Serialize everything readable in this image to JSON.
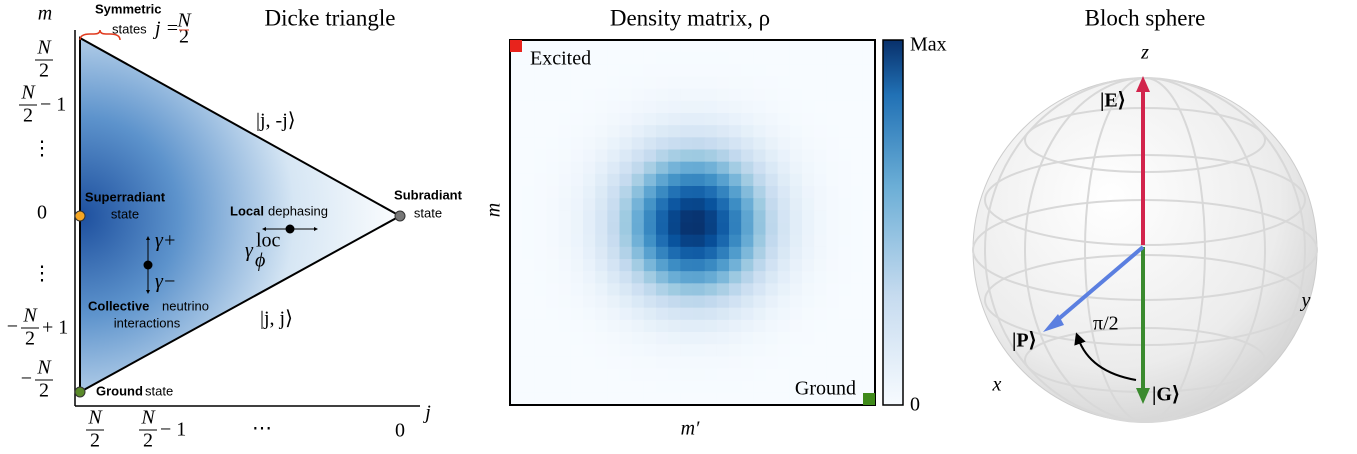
{
  "dicke": {
    "title": "Dicke triangle",
    "y_axis": "m",
    "x_axis": "j",
    "y_ticks": [
      {
        "num": "N",
        "den": "2"
      },
      {
        "num": "N",
        "den": "2",
        "after": "− 1"
      },
      {
        "text": "⋮"
      },
      {
        "text": "0"
      },
      {
        "text": "⋮"
      },
      {
        "before": "−",
        "num": "N",
        "den": "2",
        "after": "+ 1"
      },
      {
        "before": "−",
        "num": "N",
        "den": "2"
      }
    ],
    "x_ticks": [
      {
        "num": "N",
        "den": "2"
      },
      {
        "num": "N",
        "den": "2",
        "after": "− 1"
      },
      {
        "text": "⋯"
      },
      {
        "text": "0"
      }
    ],
    "symmetric": {
      "bold": "Symmetric",
      "text": "states",
      "j": "j =",
      "num": "N",
      "den": "2"
    },
    "superradiant": {
      "bold": "Superradiant",
      "text": "state"
    },
    "subradiant": {
      "bold": "Subradiant",
      "text": "state"
    },
    "local": {
      "bold": "Local",
      "text": "dephasing",
      "rate": "γ",
      "sub": "ϕ",
      "sup": "loc"
    },
    "gamma_plus": "γ+",
    "gamma_minus": "γ−",
    "collective": {
      "bold": "Collective",
      "text": "neutrino",
      "line2": "interactions"
    },
    "ket_top": "|j, -j⟩",
    "ket_bottom": "|j, j⟩",
    "ground": {
      "bold": "Ground",
      "text": "state"
    }
  },
  "density": {
    "title": "Density matrix, ρ",
    "y_axis": "m",
    "x_axis": "m′",
    "excited": "Excited",
    "ground": "Ground",
    "colorbar_max": "Max",
    "colorbar_min": "0"
  },
  "bloch": {
    "title": "Bloch sphere",
    "z": "z",
    "x": "x",
    "y": "y",
    "excited": "|E⟩",
    "plus": "|P⟩",
    "ground": "|G⟩",
    "angle": "π/2"
  }
}
